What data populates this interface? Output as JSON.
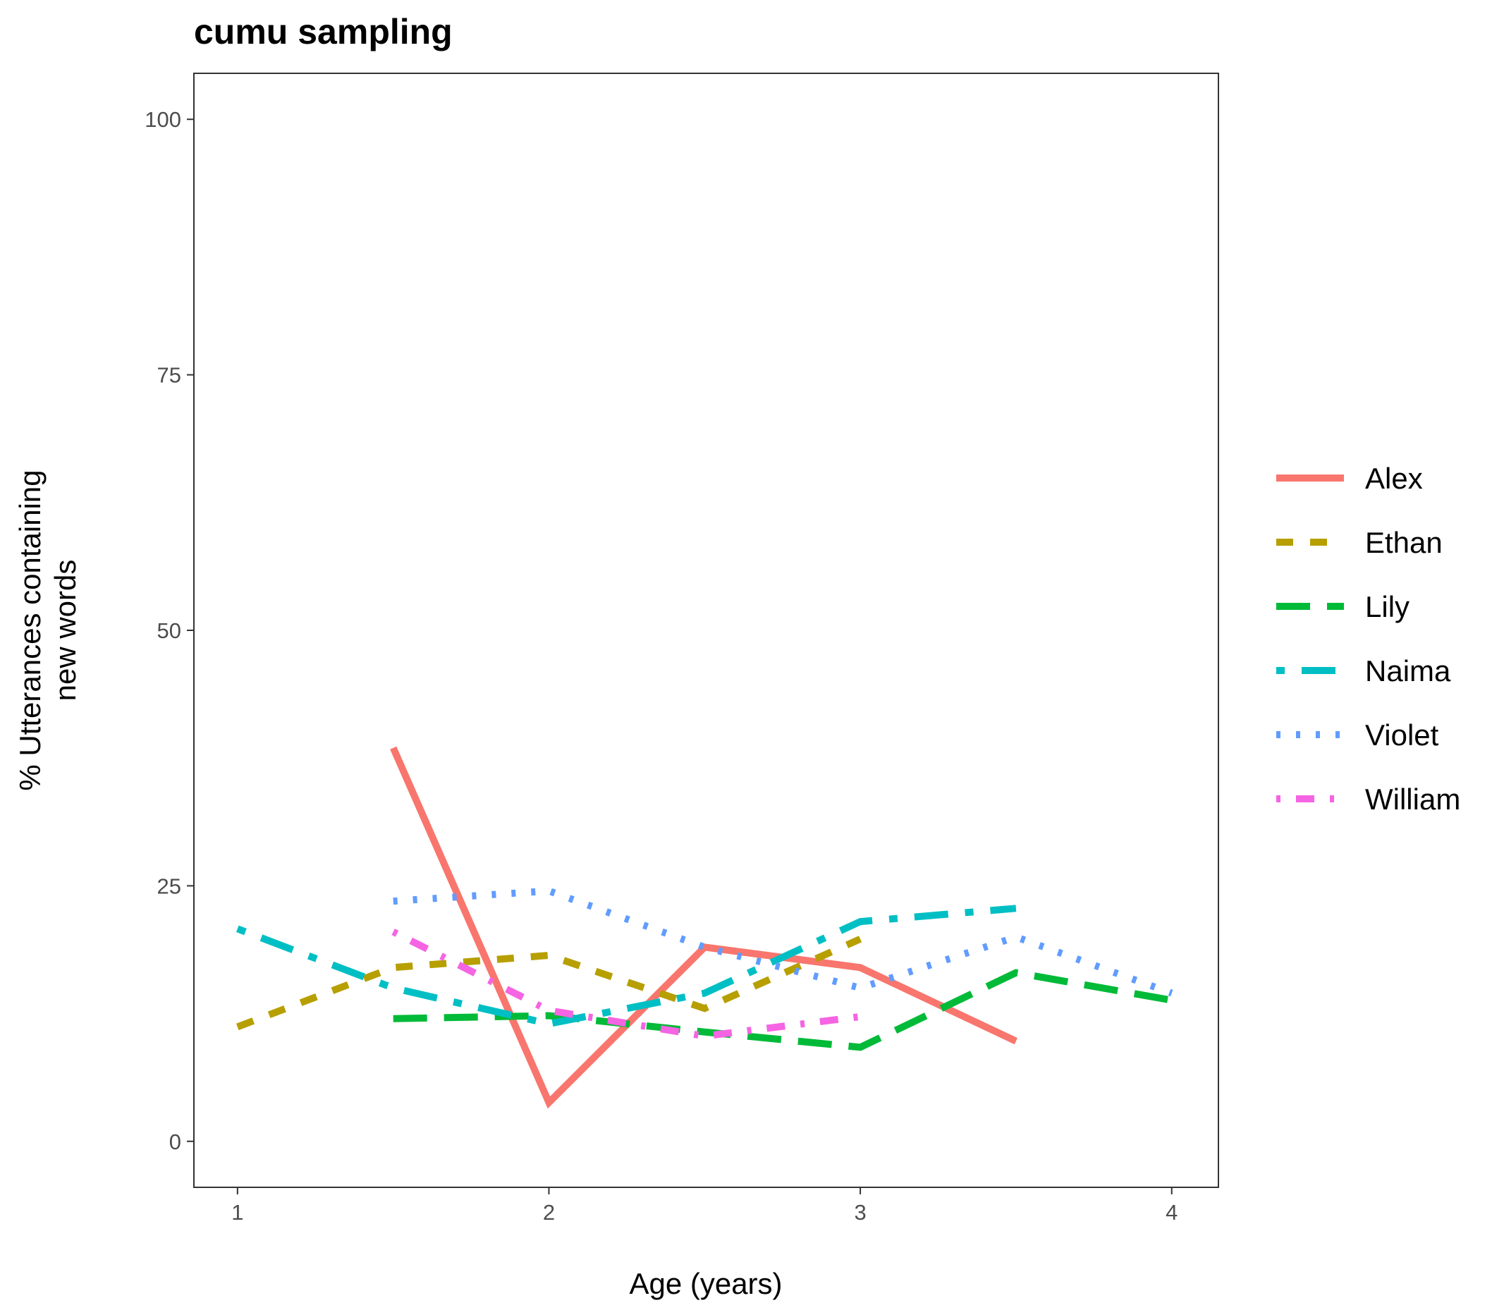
{
  "chart_data": {
    "type": "line",
    "title": "cumu sampling",
    "xlabel": "Age (years)",
    "ylabel_lines": [
      "% Utterances containing",
      "new words"
    ],
    "xlim": [
      0.86,
      4.15
    ],
    "ylim": [
      -4.5,
      104.5
    ],
    "x_ticks": [
      1,
      2,
      3,
      4
    ],
    "y_ticks": [
      0,
      25,
      50,
      75,
      100
    ],
    "grid": false,
    "legend_position": "right",
    "series": [
      {
        "name": "Alex",
        "color": "#F8766D",
        "dash": "solid",
        "x": [
          1.5,
          2.0,
          2.5,
          3.0,
          3.5
        ],
        "y": [
          38.5,
          3.8,
          19.0,
          17.0,
          9.8
        ]
      },
      {
        "name": "Ethan",
        "color": "#B79F00",
        "dash": "dashed",
        "x": [
          1.0,
          1.5,
          2.0,
          2.5,
          3.0
        ],
        "y": [
          11.2,
          17.0,
          18.2,
          13.0,
          19.8
        ]
      },
      {
        "name": "Lily",
        "color": "#00BA38",
        "dash": "longdash",
        "x": [
          1.5,
          2.0,
          2.5,
          3.0,
          3.5,
          4.0
        ],
        "y": [
          12.0,
          12.3,
          10.7,
          9.2,
          16.5,
          13.8
        ]
      },
      {
        "name": "Naima",
        "color": "#00BFC4",
        "dash": "twodash",
        "x": [
          1.0,
          1.5,
          2.0,
          2.5,
          3.0,
          3.5
        ],
        "y": [
          20.8,
          15.0,
          11.5,
          14.5,
          21.5,
          22.8
        ]
      },
      {
        "name": "Violet",
        "color": "#619CFF",
        "dash": "dotted",
        "x": [
          1.5,
          2.0,
          2.5,
          3.0,
          3.5,
          4.0
        ],
        "y": [
          23.5,
          24.5,
          19.0,
          15.0,
          20.0,
          14.5
        ]
      },
      {
        "name": "William",
        "color": "#F564E3",
        "dash": "dotdash",
        "x": [
          1.5,
          2.0,
          2.5,
          3.0
        ],
        "y": [
          20.5,
          12.8,
          10.3,
          12.2
        ]
      }
    ]
  }
}
